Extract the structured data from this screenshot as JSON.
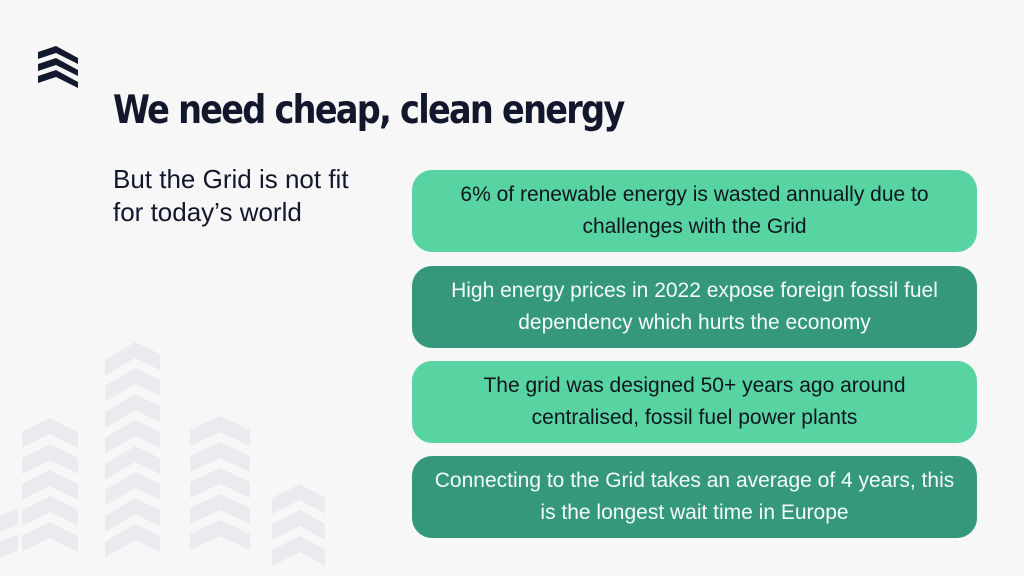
{
  "logo": {
    "icon": "stacked-chevrons-logo-icon",
    "color": "#141a2d"
  },
  "slide": {
    "title": "We need cheap, clean energy",
    "subtitle": "But the Grid is not fit for today’s world"
  },
  "cards": [
    {
      "text": "6% of renewable energy is wasted annually due to challenges with the Grid",
      "color": "#58d3a2"
    },
    {
      "text": "High energy prices in 2022 expose foreign fossil fuel dependency which hurts the economy",
      "color": "#35987d"
    },
    {
      "text": "The grid was designed 50+ years ago around centralised, fossil fuel power plants",
      "color": "#58d3a2"
    },
    {
      "text": "Connecting to the Grid takes an average of 4 years, this is the longest wait time in Europe",
      "color": "#35987d"
    }
  ],
  "decoration": {
    "icon": "building-skyline-watermark-icon"
  }
}
